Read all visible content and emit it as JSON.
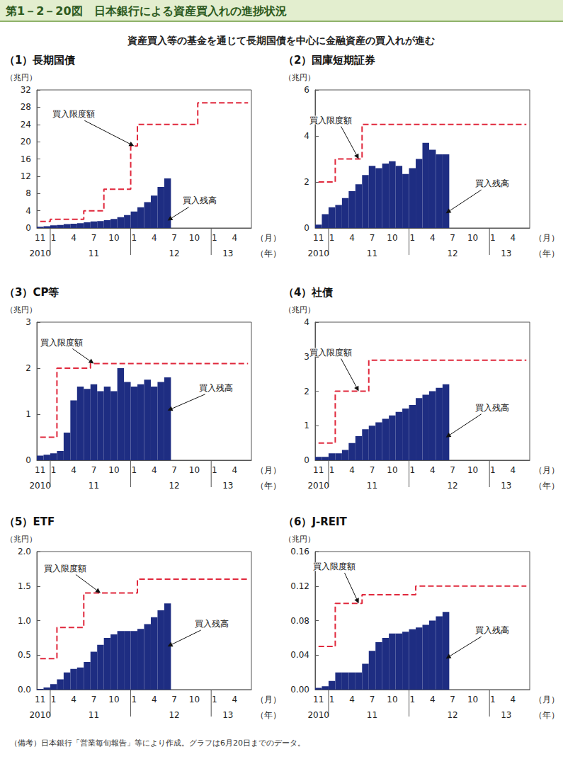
{
  "title": "第1－2－20図　日本銀行による資産買入れの進捗状況",
  "subtitle": "資産買入等の基金を通じて長期国債を中心に金融資産の買入れが進む",
  "note": "（備考）日本銀行「営業毎旬報告」等により作成。グラフは6月20日までのデータ。",
  "chart_data": [
    {
      "type": "bar",
      "title": "（1）長期国債",
      "y_label": "（兆円）",
      "x_label": "（月）",
      "year_label": "（年）",
      "categories": [
        "11",
        null,
        "1",
        null,
        null,
        "4",
        null,
        null,
        "7",
        null,
        null,
        "10",
        null,
        null,
        "1",
        null,
        null,
        "4",
        null,
        null,
        "7",
        null,
        null,
        "10",
        null,
        null,
        "1",
        null,
        null,
        "4",
        null,
        null
      ],
      "year_categories": [
        "2010",
        null,
        null,
        null,
        null,
        null,
        null,
        null,
        "11",
        null,
        null,
        null,
        null,
        null,
        null,
        null,
        null,
        null,
        null,
        null,
        "12",
        null,
        null,
        null,
        null,
        null,
        null,
        null,
        "13",
        null,
        null,
        null
      ],
      "ylim": [
        0,
        32
      ],
      "yticks": [
        0,
        4,
        8,
        12,
        16,
        20,
        24,
        28,
        32
      ],
      "grid": false,
      "series": [
        {
          "name": "買入残高",
          "type": "bar",
          "color": "#1e2d82",
          "values": [
            0.3,
            0.4,
            0.6,
            0.7,
            0.9,
            1.0,
            1.1,
            1.3,
            1.5,
            1.6,
            1.8,
            2.1,
            2.5,
            3.0,
            3.8,
            4.8,
            6.0,
            7.5,
            9.5,
            11.5,
            null,
            null,
            null,
            null,
            null,
            null,
            null,
            null,
            null,
            null,
            null,
            null
          ]
        },
        {
          "name": "買入限度額",
          "type": "line",
          "line_style": "dashed",
          "color": "#e0283c",
          "values": [
            1.5,
            1.5,
            2,
            2,
            2,
            2,
            2,
            4,
            4,
            4,
            9,
            9,
            9,
            9,
            19,
            24,
            24,
            24,
            24,
            24,
            24,
            24,
            24,
            24,
            29,
            29,
            29,
            29,
            29,
            29,
            29,
            29
          ]
        }
      ]
    },
    {
      "type": "bar",
      "title": "（2）国庫短期証券",
      "y_label": "（兆円）",
      "x_label": "（月）",
      "year_label": "（年）",
      "categories": [
        "11",
        null,
        "1",
        null,
        null,
        "4",
        null,
        null,
        "7",
        null,
        null,
        "10",
        null,
        null,
        "1",
        null,
        null,
        "4",
        null,
        null,
        "7",
        null,
        null,
        "10",
        null,
        null,
        "1",
        null,
        null,
        "4",
        null,
        null
      ],
      "year_categories": [
        "2010",
        null,
        null,
        null,
        null,
        null,
        null,
        null,
        "11",
        null,
        null,
        null,
        null,
        null,
        null,
        null,
        null,
        null,
        null,
        null,
        "12",
        null,
        null,
        null,
        null,
        null,
        null,
        null,
        "13",
        null,
        null,
        null
      ],
      "ylim": [
        0,
        6
      ],
      "yticks": [
        0,
        2,
        4,
        6
      ],
      "grid": false,
      "series": [
        {
          "name": "買入残高",
          "type": "bar",
          "color": "#1e2d82",
          "values": [
            0.15,
            0.6,
            0.9,
            1.0,
            1.3,
            1.6,
            1.9,
            2.3,
            2.7,
            2.6,
            2.8,
            2.9,
            2.7,
            2.35,
            2.6,
            3.0,
            3.7,
            3.4,
            3.2,
            3.2,
            null,
            null,
            null,
            null,
            null,
            null,
            null,
            null,
            null,
            null,
            null,
            null
          ]
        },
        {
          "name": "買入限度額",
          "type": "line",
          "line_style": "dashed",
          "color": "#e0283c",
          "values": [
            2,
            2,
            2,
            3,
            3,
            3,
            3,
            4.5,
            4.5,
            4.5,
            4.5,
            4.5,
            4.5,
            4.5,
            4.5,
            4.5,
            4.5,
            4.5,
            4.5,
            4.5,
            4.5,
            4.5,
            4.5,
            4.5,
            4.5,
            4.5,
            4.5,
            4.5,
            4.5,
            4.5,
            4.5,
            4.5
          ]
        }
      ]
    },
    {
      "type": "bar",
      "title": "（3）CP等",
      "y_label": "（兆円）",
      "x_label": "（月）",
      "year_label": "（年）",
      "categories": [
        "11",
        null,
        "1",
        null,
        null,
        "4",
        null,
        null,
        "7",
        null,
        null,
        "10",
        null,
        null,
        "1",
        null,
        null,
        "4",
        null,
        null,
        "7",
        null,
        null,
        "10",
        null,
        null,
        "1",
        null,
        null,
        "4",
        null,
        null
      ],
      "year_categories": [
        "2010",
        null,
        null,
        null,
        null,
        null,
        null,
        null,
        "11",
        null,
        null,
        null,
        null,
        null,
        null,
        null,
        null,
        null,
        null,
        null,
        "12",
        null,
        null,
        null,
        null,
        null,
        null,
        null,
        "13",
        null,
        null,
        null
      ],
      "ylim": [
        0,
        3
      ],
      "yticks": [
        0,
        1,
        2,
        3
      ],
      "grid": false,
      "series": [
        {
          "name": "買入残高",
          "type": "bar",
          "color": "#1e2d82",
          "values": [
            0.1,
            0.12,
            0.15,
            0.2,
            0.6,
            1.3,
            1.6,
            1.55,
            1.65,
            1.5,
            1.6,
            1.5,
            2.0,
            1.7,
            1.6,
            1.65,
            1.75,
            1.6,
            1.7,
            1.8,
            null,
            null,
            null,
            null,
            null,
            null,
            null,
            null,
            null,
            null,
            null,
            null
          ]
        },
        {
          "name": "買入限度額",
          "type": "line",
          "line_style": "dashed",
          "color": "#e0283c",
          "values": [
            0.5,
            0.5,
            0.5,
            2.0,
            2.0,
            2.0,
            2.0,
            2.0,
            2.1,
            2.1,
            2.1,
            2.1,
            2.1,
            2.1,
            2.1,
            2.1,
            2.1,
            2.1,
            2.1,
            2.1,
            2.1,
            2.1,
            2.1,
            2.1,
            2.1,
            2.1,
            2.1,
            2.1,
            2.1,
            2.1,
            2.1,
            2.1
          ]
        }
      ]
    },
    {
      "type": "bar",
      "title": "（4）社債",
      "y_label": "（兆円）",
      "x_label": "（月）",
      "year_label": "（年）",
      "categories": [
        "11",
        null,
        "1",
        null,
        null,
        "4",
        null,
        null,
        "7",
        null,
        null,
        "10",
        null,
        null,
        "1",
        null,
        null,
        "4",
        null,
        null,
        "7",
        null,
        null,
        "10",
        null,
        null,
        "1",
        null,
        null,
        "4",
        null,
        null
      ],
      "year_categories": [
        "2010",
        null,
        null,
        null,
        null,
        null,
        null,
        null,
        "11",
        null,
        null,
        null,
        null,
        null,
        null,
        null,
        null,
        null,
        null,
        null,
        "12",
        null,
        null,
        null,
        null,
        null,
        null,
        null,
        "13",
        null,
        null,
        null
      ],
      "ylim": [
        0,
        4
      ],
      "yticks": [
        0,
        1,
        2,
        3,
        4
      ],
      "grid": false,
      "series": [
        {
          "name": "買入残高",
          "type": "bar",
          "color": "#1e2d82",
          "values": [
            0.1,
            0.1,
            0.2,
            0.2,
            0.3,
            0.5,
            0.7,
            0.9,
            1.0,
            1.1,
            1.2,
            1.3,
            1.4,
            1.5,
            1.6,
            1.8,
            1.9,
            2.0,
            2.1,
            2.2,
            null,
            null,
            null,
            null,
            null,
            null,
            null,
            null,
            null,
            null,
            null,
            null
          ]
        },
        {
          "name": "買入限度額",
          "type": "line",
          "line_style": "dashed",
          "color": "#e0283c",
          "values": [
            0.5,
            0.5,
            0.5,
            2.0,
            2.0,
            2.0,
            2.0,
            2.0,
            2.9,
            2.9,
            2.9,
            2.9,
            2.9,
            2.9,
            2.9,
            2.9,
            2.9,
            2.9,
            2.9,
            2.9,
            2.9,
            2.9,
            2.9,
            2.9,
            2.9,
            2.9,
            2.9,
            2.9,
            2.9,
            2.9,
            2.9,
            2.9
          ]
        }
      ]
    },
    {
      "type": "bar",
      "title": "（5）ETF",
      "y_label": "（兆円）",
      "x_label": "（月）",
      "year_label": "（年）",
      "categories": [
        "11",
        null,
        "1",
        null,
        null,
        "4",
        null,
        null,
        "7",
        null,
        null,
        "10",
        null,
        null,
        "1",
        null,
        null,
        "4",
        null,
        null,
        "7",
        null,
        null,
        "10",
        null,
        null,
        "1",
        null,
        null,
        "4",
        null,
        null
      ],
      "year_categories": [
        "2010",
        null,
        null,
        null,
        null,
        null,
        null,
        null,
        "11",
        null,
        null,
        null,
        null,
        null,
        null,
        null,
        null,
        null,
        null,
        null,
        "12",
        null,
        null,
        null,
        null,
        null,
        null,
        null,
        "13",
        null,
        null,
        null
      ],
      "ylim": [
        0,
        2
      ],
      "yticks": [
        {
          "value": 0,
          "label": "0.0"
        },
        {
          "value": 0.5,
          "label": "0.5"
        },
        {
          "value": 1,
          "label": "1.0"
        },
        {
          "value": 1.5,
          "label": "1.5"
        },
        {
          "value": 2,
          "label": "2.0"
        }
      ],
      "grid": false,
      "series": [
        {
          "name": "買入残高",
          "type": "bar",
          "color": "#1e2d82",
          "values": [
            0.01,
            0.03,
            0.08,
            0.15,
            0.25,
            0.3,
            0.32,
            0.4,
            0.55,
            0.65,
            0.75,
            0.8,
            0.85,
            0.85,
            0.85,
            0.88,
            0.95,
            1.05,
            1.15,
            1.25,
            null,
            null,
            null,
            null,
            null,
            null,
            null,
            null,
            null,
            null,
            null,
            null
          ]
        },
        {
          "name": "買入限度額",
          "type": "line",
          "line_style": "dashed",
          "color": "#e0283c",
          "values": [
            0.45,
            0.45,
            0.45,
            0.9,
            0.9,
            0.9,
            0.9,
            1.4,
            1.4,
            1.4,
            1.4,
            1.4,
            1.4,
            1.4,
            1.4,
            1.6,
            1.6,
            1.6,
            1.6,
            1.6,
            1.6,
            1.6,
            1.6,
            1.6,
            1.6,
            1.6,
            1.6,
            1.6,
            1.6,
            1.6,
            1.6,
            1.6
          ]
        }
      ]
    },
    {
      "type": "bar",
      "title": "（6）J-REIT",
      "y_label": "（兆円）",
      "x_label": "（月）",
      "year_label": "（年）",
      "categories": [
        "11",
        null,
        "1",
        null,
        null,
        "4",
        null,
        null,
        "7",
        null,
        null,
        "10",
        null,
        null,
        "1",
        null,
        null,
        "4",
        null,
        null,
        "7",
        null,
        null,
        "10",
        null,
        null,
        "1",
        null,
        null,
        "4",
        null,
        null
      ],
      "year_categories": [
        "2010",
        null,
        null,
        null,
        null,
        null,
        null,
        null,
        "11",
        null,
        null,
        null,
        null,
        null,
        null,
        null,
        null,
        null,
        null,
        null,
        "12",
        null,
        null,
        null,
        null,
        null,
        null,
        null,
        "13",
        null,
        null,
        null
      ],
      "ylim": [
        0,
        0.16
      ],
      "yticks": [
        {
          "value": 0,
          "label": "0.00"
        },
        {
          "value": 0.04,
          "label": "0.04"
        },
        {
          "value": 0.08,
          "label": "0.08"
        },
        {
          "value": 0.12,
          "label": "0.12"
        },
        {
          "value": 0.16,
          "label": "0.16"
        }
      ],
      "grid": false,
      "series": [
        {
          "name": "買入残高",
          "type": "bar",
          "color": "#1e2d82",
          "values": [
            0.002,
            0.004,
            0.01,
            0.02,
            0.02,
            0.02,
            0.02,
            0.03,
            0.045,
            0.055,
            0.06,
            0.065,
            0.065,
            0.067,
            0.07,
            0.072,
            0.075,
            0.08,
            0.085,
            0.09,
            null,
            null,
            null,
            null,
            null,
            null,
            null,
            null,
            null,
            null,
            null,
            null
          ]
        },
        {
          "name": "買入限度額",
          "type": "line",
          "line_style": "dashed",
          "color": "#e0283c",
          "values": [
            0.05,
            0.05,
            0.05,
            0.1,
            0.1,
            0.1,
            0.1,
            0.11,
            0.11,
            0.11,
            0.11,
            0.11,
            0.11,
            0.11,
            0.11,
            0.12,
            0.12,
            0.12,
            0.12,
            0.12,
            0.12,
            0.12,
            0.12,
            0.12,
            0.12,
            0.12,
            0.12,
            0.12,
            0.12,
            0.12,
            0.12,
            0.12
          ]
        }
      ]
    }
  ]
}
